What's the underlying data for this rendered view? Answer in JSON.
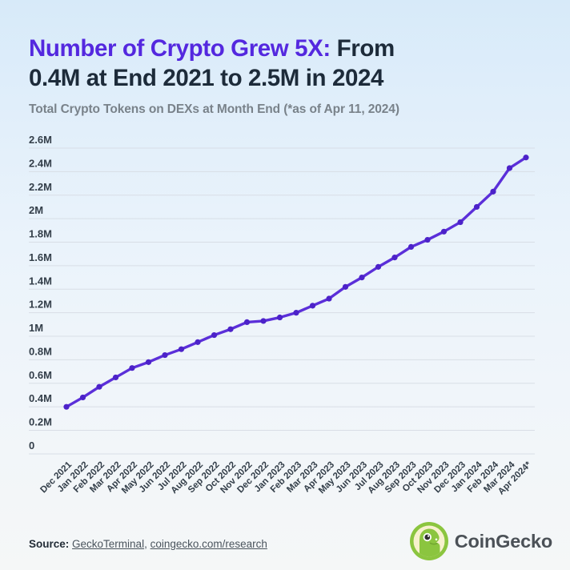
{
  "header": {
    "title": {
      "highlight": "Number of Crypto Grew 5X:",
      "rest_line1": "From",
      "line2": "0.4M at End 2021 to 2.5M in 2024"
    },
    "subtitle": "Total Crypto Tokens on DEXs at Month End (*as of Apr 11, 2024)"
  },
  "chart_data": {
    "type": "line",
    "title": "Total Crypto Tokens on DEXs at Month End (*as of Apr 11, 2024)",
    "x": [
      "Dec 2021",
      "Jan 2022",
      "Feb 2022",
      "Mar 2022",
      "Apr 2022",
      "May 2022",
      "Jun 2022",
      "Jul 2022",
      "Aug 2022",
      "Sep 2022",
      "Oct 2022",
      "Nov 2022",
      "Dec 2022",
      "Jan 2023",
      "Feb 2023",
      "Mar 2023",
      "Apr 2023",
      "May 2023",
      "Jun 2023",
      "Jul 2023",
      "Aug 2023",
      "Sep 2023",
      "Oct 2023",
      "Nov 2023",
      "Dec 2023",
      "Jan 2024",
      "Feb 2024",
      "Mar 2024",
      "Apr 2024*"
    ],
    "series": [
      {
        "name": "Total crypto tokens on DEXs (millions)",
        "values_millions": [
          0.4,
          0.48,
          0.57,
          0.65,
          0.73,
          0.78,
          0.84,
          0.89,
          0.95,
          1.01,
          1.06,
          1.12,
          1.13,
          1.16,
          1.2,
          1.26,
          1.32,
          1.42,
          1.5,
          1.59,
          1.67,
          1.76,
          1.82,
          1.89,
          1.97,
          2.1,
          2.23,
          2.43,
          2.52
        ]
      }
    ],
    "ylim": [
      0,
      2.6
    ],
    "ytick_step_millions": 0.2,
    "ytick_labels_bottom_to_top": [
      "0",
      "0.2M",
      "0.4M",
      "0.6M",
      "0.8M",
      "1M",
      "1.2M",
      "1.4M",
      "1.6M",
      "1.8M",
      "2M",
      "2.2M",
      "2.4M",
      "2.6M"
    ],
    "grid": true,
    "legend_position": "none",
    "x_tick_rotation_deg": -45,
    "line_color": "#5B2FD9",
    "marker_color": "#4C22C9"
  },
  "footer": {
    "source_label": "Source:",
    "source_link_1": "GeckoTerminal",
    "source_separator": ", ",
    "source_link_2": "coingecko.com/research",
    "brand_name": "CoinGecko"
  },
  "icons": {
    "brand_logo": "coingecko-gecko-icon"
  },
  "colors": {
    "title_highlight": "#5428DF",
    "title_text": "#1D2B3A",
    "subtitle_text": "#79828A",
    "grid_line": "#D8DEE6",
    "axis_label": "#333E49",
    "line": "#5B2FD9",
    "marker": "#4C22C9",
    "logo_green": "#8BC53F",
    "logo_cream": "#F7F1CD"
  }
}
